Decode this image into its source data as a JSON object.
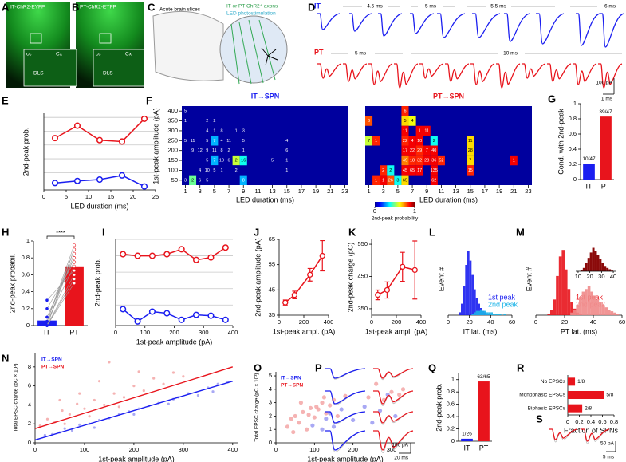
{
  "letters": [
    "A",
    "B",
    "C",
    "D",
    "E",
    "F",
    "G",
    "H",
    "I",
    "J",
    "K",
    "L",
    "M",
    "N",
    "O",
    "P",
    "Q",
    "R",
    "S"
  ],
  "colors": {
    "it": "#1a1ef0",
    "pt": "#e8141c",
    "it_light": "#8c8cf0",
    "pt_light": "#f29a9a",
    "cyan": "#1cb4e8",
    "pink": "#f08a8a",
    "dark_red": "#8b0a0a",
    "gray": "#9a9a9a"
  },
  "a": {
    "label": "IT-ChR2-EYFP",
    "cc": "cc",
    "cx": "Cx",
    "dls": "DLS"
  },
  "b": {
    "label": "PT-ChR2-EYFP",
    "cc": "cc",
    "cx": "Cx",
    "dls": "DLS"
  },
  "c": {
    "title": "Acute brain slices",
    "axons": "IT or PT ChR2⁺ axons",
    "led": "LED photostimulation"
  },
  "d": {
    "it": "IT",
    "pt": "PT",
    "it_durations": [
      "4.5 ms",
      "5 ms",
      "5.5 ms",
      "6 ms"
    ],
    "pt_durations": [
      "5 ms",
      "10 ms"
    ],
    "scale_y": "100 pA",
    "scale_x": "1 ms"
  },
  "e": {
    "xlabel": "LED duration (ms)",
    "ylabel": "2nd-peak prob.",
    "x": [
      2.5,
      7.5,
      12.5,
      17.5,
      22.5
    ],
    "pt": [
      0.7,
      0.88,
      0.67,
      0.65,
      0.98
    ],
    "it": [
      0.05,
      0.08,
      0.1,
      0.16,
      0.0
    ],
    "xlim": [
      0,
      25
    ],
    "xticks": [
      0,
      5,
      10,
      15,
      20,
      25
    ],
    "ylim": [
      -0.05,
      1.06
    ],
    "ygrid": [
      0.2,
      0.4,
      0.6,
      0.8,
      1
    ]
  },
  "f": {
    "it_title": "IT→SPN",
    "pt_title": "PT→SPN",
    "ylabel": "1st-peak amplitude (pA)",
    "xlabel": "LED duration (ms)",
    "xlim": [
      0.5,
      23.5
    ],
    "ylim": [
      25,
      425
    ],
    "yticks": [
      400,
      350,
      300,
      250,
      200,
      150,
      100,
      50
    ],
    "xticks": [
      1,
      3,
      5,
      7,
      9,
      11,
      13,
      15,
      17,
      19,
      21,
      23
    ],
    "it_cells": [
      [
        1,
        400,
        5,
        0
      ],
      [
        1,
        350,
        1,
        0
      ],
      [
        4,
        350,
        2,
        0
      ],
      [
        5,
        350,
        2,
        0
      ],
      [
        4,
        300,
        4,
        0
      ],
      [
        5,
        300,
        1,
        0
      ],
      [
        6,
        300,
        8,
        0
      ],
      [
        8,
        300,
        1,
        0
      ],
      [
        9,
        300,
        3,
        0
      ],
      [
        1,
        250,
        5,
        0
      ],
      [
        2,
        250,
        11,
        0
      ],
      [
        4,
        250,
        5,
        0
      ],
      [
        5,
        250,
        7,
        0.3
      ],
      [
        6,
        250,
        4,
        0
      ],
      [
        7,
        250,
        11,
        0
      ],
      [
        9,
        250,
        5,
        0
      ],
      [
        15,
        250,
        4,
        0
      ],
      [
        2,
        200,
        9,
        0
      ],
      [
        3,
        200,
        12,
        0
      ],
      [
        4,
        200,
        9,
        0
      ],
      [
        5,
        200,
        11,
        0
      ],
      [
        6,
        200,
        8,
        0
      ],
      [
        7,
        200,
        2,
        0
      ],
      [
        9,
        200,
        1,
        0
      ],
      [
        15,
        200,
        6,
        0
      ],
      [
        4,
        150,
        5,
        0
      ],
      [
        5,
        150,
        7,
        0.3
      ],
      [
        6,
        150,
        10,
        0
      ],
      [
        7,
        150,
        6,
        0
      ],
      [
        8,
        150,
        2,
        0.6
      ],
      [
        9,
        150,
        16,
        0.4
      ],
      [
        13,
        150,
        5,
        0
      ],
      [
        15,
        150,
        1,
        0
      ],
      [
        3,
        100,
        4,
        0
      ],
      [
        4,
        100,
        10,
        0
      ],
      [
        5,
        100,
        5,
        0
      ],
      [
        6,
        100,
        1,
        0
      ],
      [
        8,
        100,
        2,
        0
      ],
      [
        15,
        100,
        1,
        0
      ],
      [
        1,
        50,
        3,
        0
      ],
      [
        2,
        50,
        2,
        0.5
      ],
      [
        3,
        50,
        6,
        0
      ],
      [
        4,
        50,
        5,
        0
      ],
      [
        9,
        50,
        8,
        0.3
      ]
    ],
    "pt_cells": [
      [
        6,
        400,
        6,
        0.9
      ],
      [
        1,
        350,
        6,
        0.85
      ],
      [
        6,
        350,
        5,
        0.7
      ],
      [
        7,
        350,
        4,
        0.65
      ],
      [
        6,
        300,
        11,
        0.95
      ],
      [
        8,
        300,
        1,
        0.95
      ],
      [
        9,
        300,
        11,
        0.95
      ],
      [
        1,
        250,
        7,
        0.6
      ],
      [
        2,
        250,
        1,
        0.9
      ],
      [
        6,
        250,
        22,
        0.9
      ],
      [
        7,
        250,
        4,
        0.95
      ],
      [
        8,
        250,
        10,
        0.95
      ],
      [
        10,
        250,
        2,
        0.4
      ],
      [
        15,
        250,
        11,
        0.7
      ],
      [
        6,
        200,
        17,
        0.95
      ],
      [
        7,
        200,
        22,
        0.95
      ],
      [
        8,
        200,
        29,
        0.9
      ],
      [
        9,
        200,
        7,
        0.95
      ],
      [
        10,
        200,
        40,
        0.95
      ],
      [
        15,
        200,
        28,
        0.7
      ],
      [
        6,
        150,
        49,
        0.8
      ],
      [
        7,
        150,
        18,
        0.9
      ],
      [
        8,
        150,
        32,
        0.9
      ],
      [
        9,
        150,
        28,
        0.95
      ],
      [
        10,
        150,
        36,
        0.95
      ],
      [
        11,
        150,
        52,
        0.9
      ],
      [
        15,
        150,
        7,
        0.7
      ],
      [
        21,
        150,
        1,
        0.95
      ],
      [
        3,
        100,
        2,
        0.9
      ],
      [
        4,
        100,
        2,
        0.4
      ],
      [
        6,
        100,
        45,
        0.95
      ],
      [
        7,
        100,
        65,
        0.95
      ],
      [
        8,
        100,
        17,
        0.95
      ],
      [
        10,
        100,
        135,
        0.95
      ],
      [
        15,
        100,
        15,
        0.9
      ],
      [
        2,
        50,
        1,
        0.9
      ],
      [
        3,
        50,
        1,
        0.95
      ],
      [
        4,
        50,
        26,
        0.85
      ],
      [
        5,
        50,
        3,
        0.4
      ],
      [
        6,
        50,
        65,
        0.7
      ],
      [
        10,
        50,
        62,
        0.95
      ]
    ],
    "colorbar": {
      "ticks": [
        0,
        1
      ],
      "label": "2nd-peak probability"
    }
  },
  "g": {
    "ylabel": "Cond. with 2nd-peak",
    "categories": [
      "IT",
      "PT"
    ],
    "values": [
      0.21,
      0.83
    ],
    "value_labels": [
      "10/47",
      "39/47"
    ],
    "ylim": [
      0,
      1
    ],
    "yticks": [
      0,
      0.2,
      0.4,
      0.6,
      0.8,
      1
    ]
  },
  "h": {
    "ylabel": "2nd-peak probabil.",
    "categories": [
      "IT",
      "PT"
    ],
    "values": [
      0.06,
      0.7
    ],
    "significance": "****",
    "pairs": [
      [
        0.0,
        0.9
      ],
      [
        0.05,
        0.95
      ],
      [
        0.0,
        0.85
      ],
      [
        0.1,
        0.8
      ],
      [
        0.05,
        0.7
      ],
      [
        0.0,
        0.6
      ],
      [
        0.2,
        0.75
      ],
      [
        0.0,
        0.5
      ],
      [
        0.05,
        0.9
      ],
      [
        0.3,
        0.65
      ],
      [
        0.0,
        0.55
      ],
      [
        0.1,
        0.8
      ]
    ],
    "ylim": [
      0,
      1
    ],
    "yticks": [
      0,
      0.2,
      0.4,
      0.6,
      0.8,
      1
    ]
  },
  "i": {
    "xlabel": "1st-peak amplitude (pA)",
    "ylabel": "2nd-peak prob.",
    "x": [
      25,
      75,
      125,
      175,
      225,
      275,
      325,
      375
    ],
    "pt": [
      0.82,
      0.8,
      0.8,
      0.82,
      0.88,
      0.75,
      0.78,
      0.9
    ],
    "it": [
      0.15,
      0.0,
      0.12,
      0.1,
      0.02,
      0.08,
      0.07,
      0.02
    ],
    "xlim": [
      0,
      400
    ],
    "xticks": [
      0,
      100,
      200,
      300,
      400
    ],
    "ylim": [
      -0.05,
      1.0
    ],
    "ygrid": [
      0.2,
      0.4,
      0.6,
      0.8,
      1
    ]
  },
  "j": {
    "xlabel": "1st-peak ampl. (pA)",
    "ylabel": "2nd-peak amplitude (pA)",
    "x": [
      50,
      125,
      250,
      350
    ],
    "values": [
      40,
      43,
      51,
      58.5
    ],
    "errors": [
      1,
      1.5,
      2.5,
      6
    ],
    "xlim": [
      0,
      400
    ],
    "xticks": [
      0,
      200,
      400
    ],
    "ylim": [
      35,
      65
    ],
    "yticks": [
      35,
      45,
      55,
      65
    ]
  },
  "k": {
    "xlabel": "1st-peak ampl. (pA)",
    "ylabel": "2nd-peak charge (pC)",
    "x": [
      50,
      125,
      250,
      350
    ],
    "values": [
      393,
      408,
      480,
      470
    ],
    "errors": [
      15,
      25,
      45,
      90
    ],
    "xlim": [
      0,
      400
    ],
    "xticks": [
      0,
      200,
      400
    ],
    "ylim": [
      330,
      565
    ],
    "yticks": [
      350,
      450,
      550
    ]
  },
  "l": {
    "xlabel": "IT lat. (ms)",
    "ylabel": "Event #",
    "xlim": [
      0,
      60
    ],
    "xticks": [
      0,
      20,
      40,
      60
    ],
    "ylim": [
      0,
      50
    ],
    "bins": [
      0,
      2,
      4,
      6,
      8,
      10,
      12,
      14,
      16,
      18,
      20,
      22,
      24,
      26,
      28,
      30,
      32,
      34,
      36,
      38,
      40,
      42,
      44,
      46,
      48,
      50,
      52,
      54,
      56,
      58,
      60
    ],
    "series": [
      {
        "name": "1st peak",
        "values": [
          0,
          0,
          0,
          0,
          0,
          2,
          8,
          20,
          35,
          45,
          38,
          28,
          18,
          12,
          8,
          5,
          3,
          2,
          1,
          1,
          0,
          0,
          0,
          0,
          0,
          0,
          0,
          0,
          0,
          0
        ]
      },
      {
        "name": "2nd peak",
        "values": [
          0,
          0,
          0,
          0,
          0,
          0,
          0,
          0,
          0,
          0,
          0,
          1,
          2,
          3,
          3,
          4,
          3,
          3,
          2,
          2,
          2,
          1,
          1,
          1,
          1,
          0,
          1,
          0,
          0,
          0
        ]
      }
    ]
  },
  "m": {
    "xlabel": "PT lat. (ms)",
    "ylabel": "Event #",
    "xlim": [
      0,
      60
    ],
    "xticks": [
      0,
      20,
      40,
      60
    ],
    "ylim": [
      0,
      55
    ],
    "bins": [
      0,
      2,
      4,
      6,
      8,
      10,
      12,
      14,
      16,
      18,
      20,
      22,
      24,
      26,
      28,
      30,
      32,
      34,
      36,
      38,
      40,
      42,
      44,
      46,
      48,
      50,
      52,
      54,
      56,
      58,
      60
    ],
    "series": [
      {
        "name": "1st peak",
        "values": [
          0,
          0,
          0,
          0,
          1,
          4,
          12,
          30,
          45,
          50,
          35,
          20,
          10,
          5,
          2,
          1,
          0,
          0,
          0,
          0,
          0,
          0,
          0,
          0,
          0,
          0,
          0,
          0,
          0,
          0
        ]
      },
      {
        "name": "2nd peak",
        "values": [
          0,
          0,
          0,
          0,
          0,
          0,
          0,
          0,
          0,
          0,
          0,
          0,
          2,
          4,
          8,
          14,
          18,
          20,
          22,
          18,
          15,
          12,
          10,
          8,
          6,
          4,
          3,
          2,
          1,
          0
        ]
      }
    ],
    "inset": {
      "xlim": [
        8,
        42
      ],
      "xticks": [
        10,
        20,
        30,
        40
      ],
      "ylim": [
        0,
        38
      ],
      "bins": [
        10,
        12,
        14,
        16,
        18,
        20,
        22,
        24,
        26,
        28,
        30,
        32,
        34,
        36,
        38,
        40
      ],
      "values": [
        0,
        2,
        5,
        12,
        20,
        28,
        35,
        30,
        24,
        18,
        12,
        8,
        5,
        3,
        1
      ]
    }
  },
  "n": {
    "xlabel": "1st-peak amplitude (pA)",
    "ylabel": "Total EPSC charge (pC × 10³)",
    "xlim": [
      0,
      410
    ],
    "xticks": [
      0,
      100,
      200,
      300,
      400
    ],
    "ylim": [
      0,
      9.5
    ],
    "yticks": [
      0,
      2,
      4,
      6,
      8
    ],
    "series": [
      {
        "name": "IT→SPN",
        "x": [
          20,
          35,
          50,
          60,
          75,
          90,
          110,
          130,
          150,
          170,
          190,
          210,
          230,
          250,
          270,
          290,
          310,
          330,
          350,
          370,
          390,
          120,
          200,
          280,
          360
        ],
        "values": [
          0.8,
          0.9,
          1.1,
          1.5,
          1.3,
          1.9,
          2.0,
          2.4,
          2.6,
          3.0,
          3.3,
          3.6,
          3.9,
          4.2,
          4.1,
          4.8,
          5.2,
          5.0,
          5.8,
          6.2,
          6.4,
          1.6,
          3.0,
          4.6,
          5.4
        ],
        "fit_x": [
          0,
          400
        ],
        "fit_values": [
          0.3,
          6.5
        ]
      },
      {
        "name": "PT→SPN",
        "x": [
          10,
          25,
          40,
          55,
          70,
          85,
          100,
          120,
          140,
          160,
          180,
          200,
          220,
          240,
          260,
          280,
          300,
          60,
          90,
          130,
          170,
          210,
          50,
          110,
          150
        ],
        "values": [
          1.8,
          2.5,
          2.2,
          3.4,
          3.0,
          4.1,
          3.6,
          4.5,
          4.0,
          5.2,
          4.8,
          6.0,
          5.5,
          6.8,
          6.2,
          7.4,
          7.0,
          2.0,
          5.2,
          6.5,
          3.8,
          7.5,
          4.5,
          2.8,
          8.5
        ],
        "fit_x": [
          0,
          400
        ],
        "fit_values": [
          1.5,
          8.0
        ]
      }
    ]
  },
  "o": {
    "xlabel": "1st-peak amplitude (pA)",
    "ylabel": "Total EPSC charge (pC × 10³)",
    "xlim": [
      0,
      360
    ],
    "xticks": [
      0,
      100,
      200,
      300
    ],
    "ylim": [
      0,
      5.3
    ],
    "yticks": [
      0,
      1,
      2,
      3,
      4,
      5
    ],
    "series": [
      {
        "name": "IT→SPN",
        "x": [
          95,
          120,
          130,
          150,
          170,
          230,
          250,
          270,
          290,
          310,
          140,
          200
        ],
        "values": [
          1.3,
          1.0,
          1.8,
          1.2,
          2.5,
          2.7,
          1.5,
          2.4,
          3.6,
          2.0,
          2.2,
          1.7
        ]
      },
      {
        "name": "PT→SPN",
        "x": [
          30,
          40,
          50,
          60,
          70,
          80,
          90,
          100,
          110,
          120,
          130,
          140,
          150,
          160,
          180,
          240,
          260,
          280,
          300,
          320,
          330,
          45,
          65,
          85,
          105,
          125
        ],
        "values": [
          1.2,
          1.8,
          2.0,
          1.5,
          2.3,
          1.0,
          2.6,
          1.9,
          2.5,
          3.0,
          2.2,
          2.8,
          3.2,
          2.0,
          3.5,
          3.4,
          4.4,
          3.2,
          3.8,
          3.6,
          4.0,
          0.8,
          3.0,
          2.1,
          2.7,
          3.4
        ]
      }
    ]
  },
  "p": {
    "scale_y": "100 pA",
    "scale_x": "20 ms"
  },
  "q": {
    "ylabel": "2nd-peak prob.",
    "categories": [
      "IT",
      "PT"
    ],
    "values": [
      0.04,
      0.97
    ],
    "value_labels": [
      "1/26",
      "63/65"
    ],
    "ylim": [
      0,
      1.1
    ],
    "yticks": [
      0,
      0.2,
      0.4,
      0.6,
      0.8,
      1
    ]
  },
  "r": {
    "xlabel": "Fraction of SPNs",
    "categories": [
      "No EPSCs",
      "Monophasic EPSCs",
      "Biphasic EPSCs"
    ],
    "values": [
      0.125,
      0.625,
      0.25
    ],
    "value_labels": [
      "1/8",
      "5/8",
      "2/8"
    ],
    "xlim": [
      0,
      0.8
    ],
    "xticks": [
      0,
      0.2,
      0.4,
      0.6,
      0.8
    ]
  },
  "s": {
    "scale_y": "50 pA",
    "scale_x": "5 ms"
  }
}
